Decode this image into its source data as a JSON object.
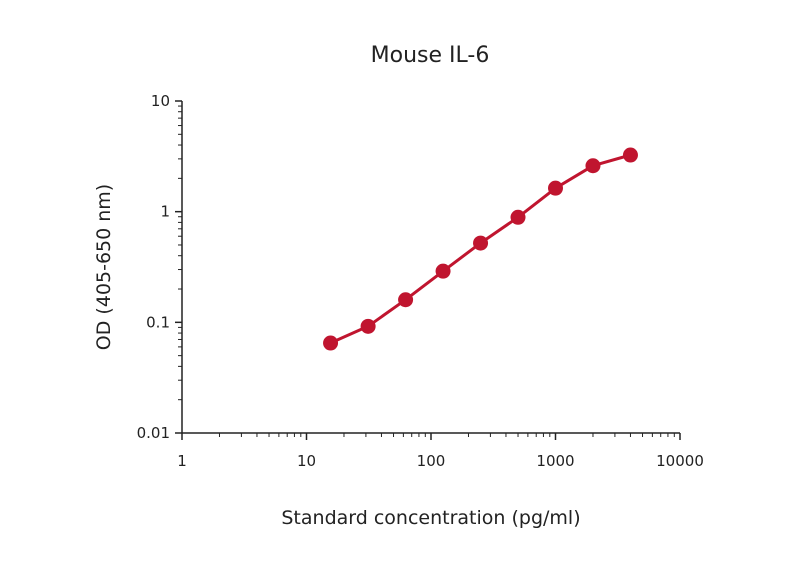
{
  "chart_data": {
    "type": "line",
    "title": "Mouse IL-6",
    "xlabel": "Standard concentration (pg/ml)",
    "ylabel": "OD (405-650 nm)",
    "x_scale": "log",
    "y_scale": "log",
    "xlim": [
      1,
      10000
    ],
    "ylim": [
      0.01,
      10
    ],
    "x_ticks": [
      1,
      10,
      100,
      1000,
      10000
    ],
    "x_tick_labels": [
      "1",
      "10",
      "100",
      "1000",
      "10000"
    ],
    "y_ticks": [
      0.01,
      0.1,
      1,
      10
    ],
    "y_tick_labels": [
      "0.01",
      "0.1",
      "1",
      "10"
    ],
    "grid": false,
    "series": [
      {
        "color": "#c0152f",
        "x": [
          15.6,
          31.25,
          62.5,
          125,
          250,
          500,
          1000,
          2000,
          4000
        ],
        "y": [
          0.065,
          0.092,
          0.16,
          0.29,
          0.52,
          0.89,
          1.63,
          2.6,
          3.25
        ]
      }
    ]
  }
}
